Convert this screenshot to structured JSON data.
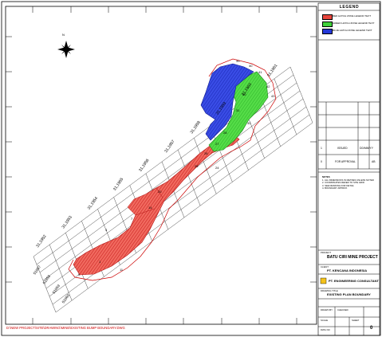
{
  "legend": {
    "title": "LEGEND",
    "items": [
      {
        "label": "RED HATCH ZONE LEGEND TEXT",
        "color": "#e8453c"
      },
      {
        "label": "GREEN HATCH ZONE LEGEND TEXT",
        "color": "#3fd13a"
      },
      {
        "label": "BLUE HATCH ZONE LEGEND TEXT",
        "color": "#2438d8"
      }
    ]
  },
  "grid_labels": [
    "31,1952",
    "31,1953",
    "31,1954",
    "31,1955",
    "31,1956",
    "31,1957",
    "31,1958",
    "31,1959",
    "31,1960",
    "31,1961"
  ],
  "station_labels": [
    "51957",
    "51958",
    "51959",
    "51960"
  ],
  "north_label": "N",
  "revision_table": {
    "row1": {
      "num": "1",
      "desc": "ISSUED",
      "date": "DD/MM/YY"
    },
    "row2": {
      "num": "0",
      "desc": "FOR APPROVAL",
      "code": "AB"
    }
  },
  "notes": {
    "heading": "NOTES",
    "lines": [
      "1. ALL DIMENSIONS IN METRES UNLESS NOTED",
      "2. COORDINATES REFER TO SITE GRID",
      "3. SEE DRAWING FOR DETAIL",
      "4. BOUNDARY APPROX."
    ]
  },
  "title_block": {
    "project_label": "PROJECT",
    "project": "BATU CIRI MINE PROJECT",
    "client_label": "CLIENT",
    "client": "PT. KENCANA INDONESIA",
    "consultant": "PT. ENGINEERING CONSULTANT",
    "drawing_label": "DRAWING TITLE",
    "drawing": "EXISTING PLAN BOUNDARY",
    "drawn_by": "DRAWN BY",
    "checked_by": "CHECKED",
    "scale": "SCALE",
    "sheet": "SHEET",
    "dwg_no": "DWG NO",
    "rev": "0"
  },
  "footer_path": "D:\\NEW PROJECT\\SITE\\DRAWING\\MINE\\EXISTING BUMP BOUNDARY.DWG"
}
